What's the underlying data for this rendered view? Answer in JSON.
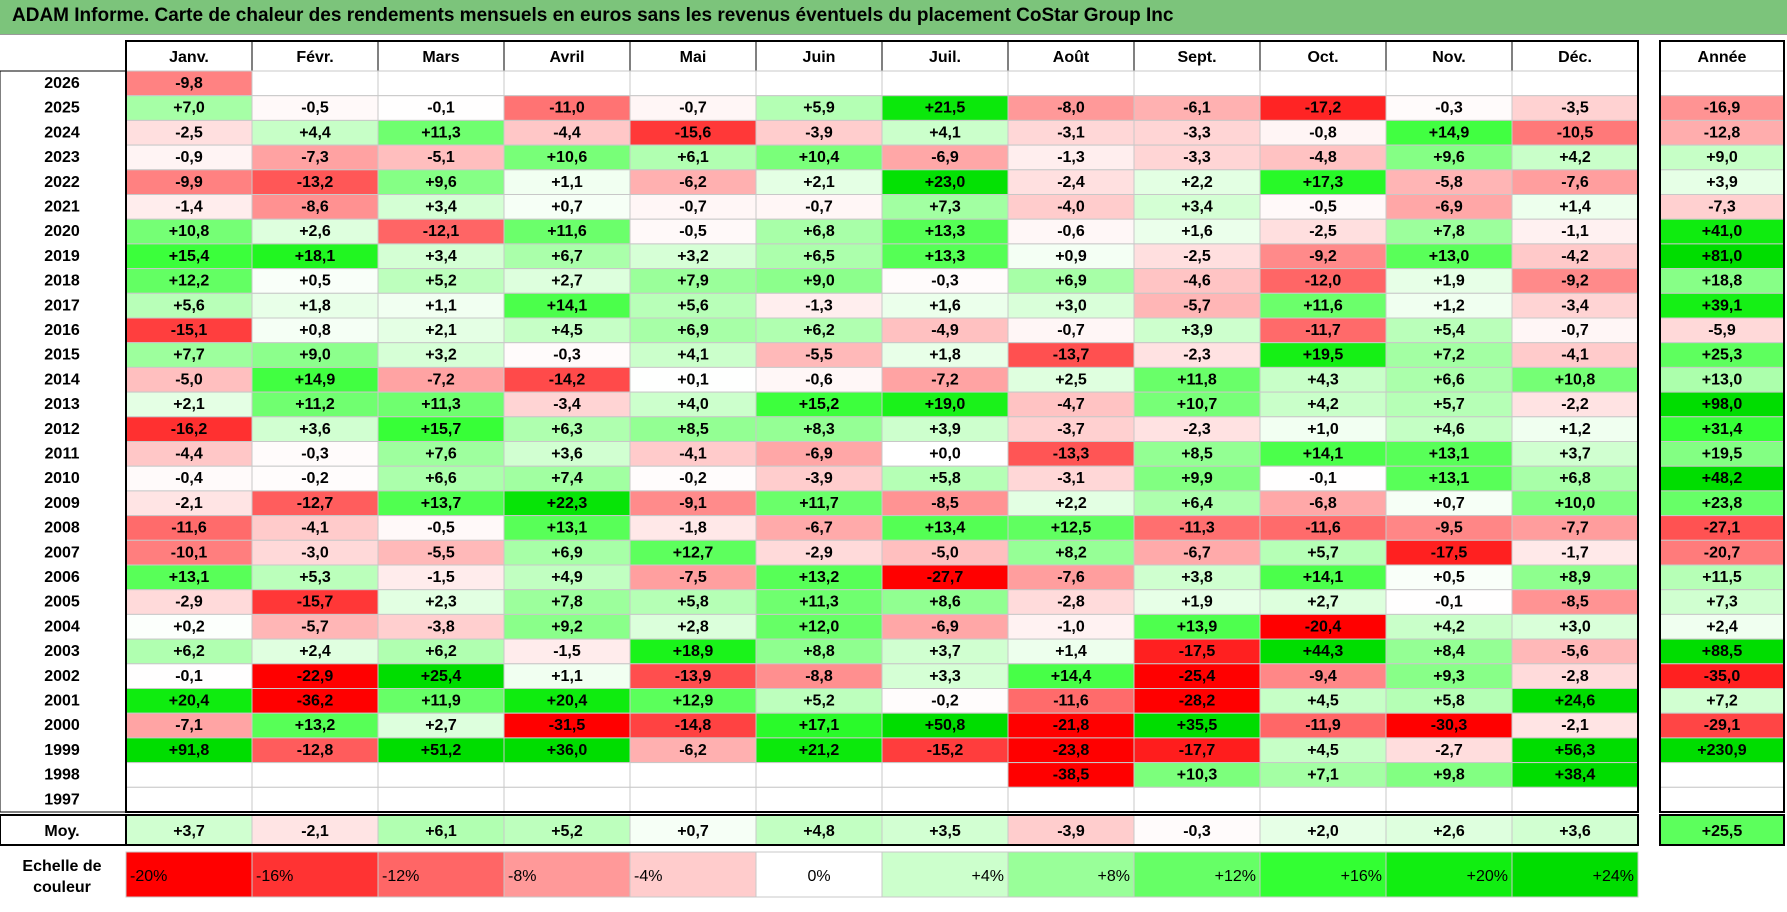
{
  "title": "ADAM Informe. Carte de chaleur des rendements mensuels en euros sans les revenus éventuels du placement CoStar Group Inc",
  "chart_data": {
    "type": "heatmap",
    "columns": [
      "Janv.",
      "Févr.",
      "Mars",
      "Avril",
      "Mai",
      "Juin",
      "Juil.",
      "Août",
      "Sept.",
      "Oct.",
      "Nov.",
      "Déc."
    ],
    "year_column_label": "Année",
    "rows": [
      {
        "year": "2026",
        "values": [
          "-9,8",
          "",
          "",
          "",
          "",
          "",
          "",
          "",
          "",
          "",
          "",
          ""
        ],
        "annual": ""
      },
      {
        "year": "2025",
        "values": [
          "+7,0",
          "-0,5",
          "-0,1",
          "-11,0",
          "-0,7",
          "+5,9",
          "+21,5",
          "-8,0",
          "-6,1",
          "-17,2",
          "-0,3",
          "-3,5"
        ],
        "annual": "-16,9"
      },
      {
        "year": "2024",
        "values": [
          "-2,5",
          "+4,4",
          "+11,3",
          "-4,4",
          "-15,6",
          "-3,9",
          "+4,1",
          "-3,1",
          "-3,3",
          "-0,8",
          "+14,9",
          "-10,5"
        ],
        "annual": "-12,8"
      },
      {
        "year": "2023",
        "values": [
          "-0,9",
          "-7,3",
          "-5,1",
          "+10,6",
          "+6,1",
          "+10,4",
          "-6,9",
          "-1,3",
          "-3,3",
          "-4,8",
          "+9,6",
          "+4,2"
        ],
        "annual": "+9,0"
      },
      {
        "year": "2022",
        "values": [
          "-9,9",
          "-13,2",
          "+9,6",
          "+1,1",
          "-6,2",
          "+2,1",
          "+23,0",
          "-2,4",
          "+2,2",
          "+17,3",
          "-5,8",
          "-7,6"
        ],
        "annual": "+3,9"
      },
      {
        "year": "2021",
        "values": [
          "-1,4",
          "-8,6",
          "+3,4",
          "+0,7",
          "-0,7",
          "-0,7",
          "+7,3",
          "-4,0",
          "+3,4",
          "-0,5",
          "-6,9",
          "+1,4"
        ],
        "annual": "-7,3"
      },
      {
        "year": "2020",
        "values": [
          "+10,8",
          "+2,6",
          "-12,1",
          "+11,6",
          "-0,5",
          "+6,8",
          "+13,3",
          "-0,6",
          "+1,6",
          "-2,5",
          "+7,8",
          "-1,1"
        ],
        "annual": "+41,0"
      },
      {
        "year": "2019",
        "values": [
          "+15,4",
          "+18,1",
          "+3,4",
          "+6,7",
          "+3,2",
          "+6,5",
          "+13,3",
          "+0,9",
          "-2,5",
          "-9,2",
          "+13,0",
          "-4,2"
        ],
        "annual": "+81,0"
      },
      {
        "year": "2018",
        "values": [
          "+12,2",
          "+0,5",
          "+5,2",
          "+2,7",
          "+7,9",
          "+9,0",
          "-0,3",
          "+6,9",
          "-4,6",
          "-12,0",
          "+1,9",
          "-9,2"
        ],
        "annual": "+18,8"
      },
      {
        "year": "2017",
        "values": [
          "+5,6",
          "+1,8",
          "+1,1",
          "+14,1",
          "+5,6",
          "-1,3",
          "+1,6",
          "+3,0",
          "-5,7",
          "+11,6",
          "+1,2",
          "-3,4"
        ],
        "annual": "+39,1"
      },
      {
        "year": "2016",
        "values": [
          "-15,1",
          "+0,8",
          "+2,1",
          "+4,5",
          "+6,9",
          "+6,2",
          "-4,9",
          "-0,7",
          "+3,9",
          "-11,7",
          "+5,4",
          "-0,7"
        ],
        "annual": "-5,9"
      },
      {
        "year": "2015",
        "values": [
          "+7,7",
          "+9,0",
          "+3,2",
          "-0,3",
          "+4,1",
          "-5,5",
          "+1,8",
          "-13,7",
          "-2,3",
          "+19,5",
          "+7,2",
          "-4,1"
        ],
        "annual": "+25,3"
      },
      {
        "year": "2014",
        "values": [
          "-5,0",
          "+14,9",
          "-7,2",
          "-14,2",
          "+0,1",
          "-0,6",
          "-7,2",
          "+2,5",
          "+11,8",
          "+4,3",
          "+6,6",
          "+10,8"
        ],
        "annual": "+13,0"
      },
      {
        "year": "2013",
        "values": [
          "+2,1",
          "+11,2",
          "+11,3",
          "-3,4",
          "+4,0",
          "+15,2",
          "+19,0",
          "-4,7",
          "+10,7",
          "+4,2",
          "+5,7",
          "-2,2"
        ],
        "annual": "+98,0"
      },
      {
        "year": "2012",
        "values": [
          "-16,2",
          "+3,6",
          "+15,7",
          "+6,3",
          "+8,5",
          "+8,3",
          "+3,9",
          "-3,7",
          "-2,3",
          "+1,0",
          "+4,6",
          "+1,2"
        ],
        "annual": "+31,4"
      },
      {
        "year": "2011",
        "values": [
          "-4,4",
          "-0,3",
          "+7,6",
          "+3,6",
          "-4,1",
          "-6,9",
          "+0,0",
          "-13,3",
          "+8,5",
          "+14,1",
          "+13,1",
          "+3,7"
        ],
        "annual": "+19,5"
      },
      {
        "year": "2010",
        "values": [
          "-0,4",
          "-0,2",
          "+6,6",
          "+7,4",
          "-0,2",
          "-3,9",
          "+5,8",
          "-3,1",
          "+9,9",
          "-0,1",
          "+13,1",
          "+6,8"
        ],
        "annual": "+48,2"
      },
      {
        "year": "2009",
        "values": [
          "-2,1",
          "-12,7",
          "+13,7",
          "+22,3",
          "-9,1",
          "+11,7",
          "-8,5",
          "+2,2",
          "+6,4",
          "-6,8",
          "+0,7",
          "+10,0"
        ],
        "annual": "+23,8"
      },
      {
        "year": "2008",
        "values": [
          "-11,6",
          "-4,1",
          "-0,5",
          "+13,1",
          "-1,8",
          "-6,7",
          "+13,4",
          "+12,5",
          "-11,3",
          "-11,6",
          "-9,5",
          "-7,7"
        ],
        "annual": "-27,1"
      },
      {
        "year": "2007",
        "values": [
          "-10,1",
          "-3,0",
          "-5,5",
          "+6,9",
          "+12,7",
          "-2,9",
          "-5,0",
          "+8,2",
          "-6,7",
          "+5,7",
          "-17,5",
          "-1,7"
        ],
        "annual": "-20,7"
      },
      {
        "year": "2006",
        "values": [
          "+13,1",
          "+5,3",
          "-1,5",
          "+4,9",
          "-7,5",
          "+13,2",
          "-27,7",
          "-7,6",
          "+3,8",
          "+14,1",
          "+0,5",
          "+8,9"
        ],
        "annual": "+11,5"
      },
      {
        "year": "2005",
        "values": [
          "-2,9",
          "-15,7",
          "+2,3",
          "+7,8",
          "+5,8",
          "+11,3",
          "+8,6",
          "-2,8",
          "+1,9",
          "+2,7",
          "-0,1",
          "-8,5"
        ],
        "annual": "+7,3"
      },
      {
        "year": "2004",
        "values": [
          "+0,2",
          "-5,7",
          "-3,8",
          "+9,2",
          "+2,8",
          "+12,0",
          "-6,9",
          "-1,0",
          "+13,9",
          "-20,4",
          "+4,2",
          "+3,0"
        ],
        "annual": "+2,4"
      },
      {
        "year": "2003",
        "values": [
          "+6,2",
          "+2,4",
          "+6,2",
          "-1,5",
          "+18,9",
          "+8,8",
          "+3,7",
          "+1,4",
          "-17,5",
          "+44,3",
          "+8,4",
          "-5,6"
        ],
        "annual": "+88,5"
      },
      {
        "year": "2002",
        "values": [
          "-0,1",
          "-22,9",
          "+25,4",
          "+1,1",
          "-13,9",
          "-8,8",
          "+3,3",
          "+14,4",
          "-25,4",
          "-9,4",
          "+9,3",
          "-2,8"
        ],
        "annual": "-35,0"
      },
      {
        "year": "2001",
        "values": [
          "+20,4",
          "-36,2",
          "+11,9",
          "+20,4",
          "+12,9",
          "+5,2",
          "-0,2",
          "-11,6",
          "-28,2",
          "+4,5",
          "+5,8",
          "+24,6"
        ],
        "annual": "+7,2"
      },
      {
        "year": "2000",
        "values": [
          "-7,1",
          "+13,2",
          "+2,7",
          "-31,5",
          "-14,8",
          "+17,1",
          "+50,8",
          "-21,8",
          "+35,5",
          "-11,9",
          "-30,3",
          "-2,1"
        ],
        "annual": "-29,1"
      },
      {
        "year": "1999",
        "values": [
          "+91,8",
          "-12,8",
          "+51,2",
          "+36,0",
          "-6,2",
          "+21,2",
          "-15,2",
          "-23,8",
          "-17,7",
          "+4,5",
          "-2,7",
          "+56,3"
        ],
        "annual": "+230,9"
      },
      {
        "year": "1998",
        "values": [
          "",
          "",
          "",
          "",
          "",
          "",
          "",
          "-38,5",
          "+10,3",
          "+7,1",
          "+9,8",
          "+38,4"
        ],
        "annual": ""
      },
      {
        "year": "1997",
        "values": [
          "",
          "",
          "",
          "",
          "",
          "",
          "",
          "",
          "",
          "",
          "",
          ""
        ],
        "annual": ""
      }
    ],
    "average": {
      "label": "Moy.",
      "values": [
        "+3,7",
        "-2,1",
        "+6,1",
        "+5,2",
        "+0,7",
        "+4,8",
        "+3,5",
        "-3,9",
        "-0,3",
        "+2,0",
        "+2,6",
        "+3,6"
      ],
      "annual": "+25,5"
    },
    "legend": {
      "label_line1": "Echelle de",
      "label_line2": "couleur",
      "steps": [
        {
          "label": "-20%",
          "value": -20,
          "color": "#ff0000"
        },
        {
          "label": "-16%",
          "value": -16,
          "color": "#ff3333"
        },
        {
          "label": "-12%",
          "value": -12,
          "color": "#ff6666"
        },
        {
          "label": "-8%",
          "value": -8,
          "color": "#ff9999"
        },
        {
          "label": "-4%",
          "value": -4,
          "color": "#ffcccc"
        },
        {
          "label": "0%",
          "value": 0,
          "color": "#ffffff"
        },
        {
          "label": "+4%",
          "value": 4,
          "color": "#ccffcc"
        },
        {
          "label": "+8%",
          "value": 8,
          "color": "#99ff99"
        },
        {
          "label": "+12%",
          "value": 12,
          "color": "#66ff66"
        },
        {
          "label": "+16%",
          "value": 16,
          "color": "#33ff33"
        },
        {
          "label": "+20%",
          "value": 20,
          "color": "#11ee11"
        },
        {
          "label": "+24%",
          "value": 24,
          "color": "#00dd00"
        }
      ]
    },
    "colors": {
      "title_bg": "#7cc47b",
      "max_negative": "#ff0000",
      "neutral": "#ffffff",
      "max_positive": "#00dd00"
    }
  }
}
